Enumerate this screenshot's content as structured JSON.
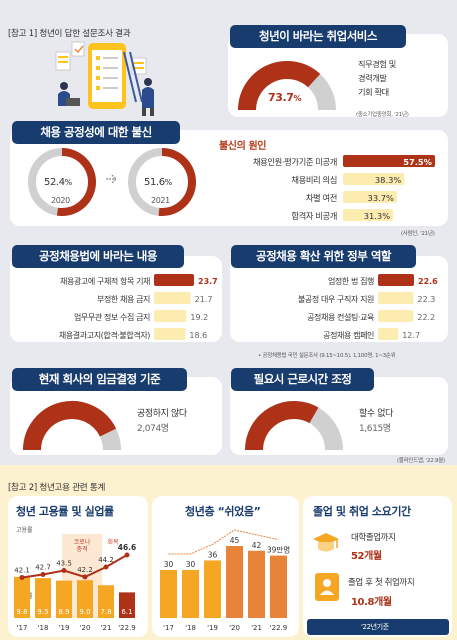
{
  "header1": "[참고 1] 청년이 답한 설문조사 결과",
  "header2": "[참고 2] 청년고용 관련 통계",
  "colors": {
    "navy": "#183c6e",
    "red": "#ad3218",
    "gray": "#d0d0d0",
    "yellow": "#fdecaf",
    "orange": "#f5a623",
    "lightbg": "#e8e9ef",
    "cream": "#fdf2cf"
  },
  "icons": [
    "illustration-people-survey",
    "graduation-cap-icon",
    "badge-id-icon",
    "arrow-right-icon"
  ],
  "p1": {
    "title": "청년이 바라는 취업서비스",
    "desc": [
      "직무경험 및",
      "경력개발",
      "기회 확대"
    ],
    "source": "(중소기업중앙회, '21년)",
    "chart_data": {
      "type": "pie",
      "values": [
        73.7
      ],
      "value_label": "73.7",
      "unit": "%"
    }
  },
  "p2": {
    "title": "채용 공정성에 대한 불신",
    "chart_data": [
      {
        "type": "pie",
        "year": "2020",
        "values": [
          52.4
        ],
        "value_label": "52.4",
        "unit": "%"
      },
      {
        "type": "pie",
        "year": "2021",
        "values": [
          51.6
        ],
        "value_label": "51.6",
        "unit": "%"
      }
    ]
  },
  "p3": {
    "title": "불신의 원인",
    "source": "(사람인, '21년)",
    "chart_data": {
      "type": "bar",
      "categories": [
        "채용인원·평가기준 미공개",
        "채용비리 의심",
        "차별 여전",
        "합격자 비공개"
      ],
      "values": [
        57.5,
        38.3,
        33.7,
        31.3
      ],
      "labels": [
        "57.5%",
        "38.3%",
        "33.7%",
        "31.3%"
      ],
      "xlim": [
        0,
        57.5
      ]
    }
  },
  "p4": {
    "title": "공정채용법에 바라는 내용",
    "chart_data": {
      "type": "bar",
      "categories": [
        "채용광고에 구체적 항목 기재",
        "부정한 채용 금지",
        "업무무관 정보 수집 금지",
        "채용결과고지(합격·불합격자)"
      ],
      "values": [
        23.7,
        21.7,
        19.2,
        18.6
      ],
      "labels": [
        "23.7",
        "21.7",
        "19.2",
        "18.6"
      ],
      "xlim": [
        0,
        23.7
      ]
    }
  },
  "p5": {
    "title": "공정채용 확산 위한 정부 역할",
    "chart_data": {
      "type": "bar",
      "categories": [
        "엄정한 법 집행",
        "불공정 대우 구직자 지원",
        "공정채용 컨설팅·교육",
        "공정채용 캠페인"
      ],
      "values": [
        22.6,
        22.3,
        22.2,
        12.7
      ],
      "labels": [
        "22.6",
        "22.3",
        "22.2",
        "12.7"
      ],
      "xlim": [
        0,
        22.6
      ]
    }
  },
  "note1": "• 공정채용법 국민 설문조사 (9.15~10.5), 1,100명, 1~3순위",
  "p6": {
    "title": "현재 회사의 임금결정 기준",
    "desc": "공정하지 않다",
    "count": "2,074명",
    "chart_data": {
      "type": "pie",
      "values": [
        85.6
      ],
      "value_label": "85.6",
      "unit": "%"
    }
  },
  "p7": {
    "title": "필요시 근로시간 조정",
    "desc": "할수 없다",
    "count": "1,615명",
    "source": "(블라인드앱, '22.9월)",
    "chart_data": {
      "type": "pie",
      "values": [
        66.6
      ],
      "value_label": "66.6",
      "unit": "%"
    }
  },
  "p8": {
    "title": "청년 고용률 및 실업률",
    "legend": [
      "고용률",
      "실업률"
    ],
    "covid_label": [
      "코로나",
      "충격"
    ],
    "recovery_label": "회복",
    "chart_data": {
      "type": "bar",
      "categories": [
        "'17",
        "'18",
        "'19",
        "'20",
        "'21",
        "'22.9"
      ],
      "series": [
        {
          "name": "고용률",
          "type": "line",
          "values": [
            42.1,
            42.7,
            43.5,
            42.2,
            44.2,
            46.6
          ]
        },
        {
          "name": "실업률",
          "type": "bar",
          "values": [
            9.8,
            9.5,
            8.9,
            9.0,
            7.8,
            6.1
          ]
        }
      ]
    }
  },
  "p9": {
    "title": "청년층 “쉬었음”",
    "unit_label": "39만명",
    "chart_data": {
      "type": "bar",
      "categories": [
        "'17",
        "'18",
        "'19",
        "'20",
        "'21",
        "'22.9"
      ],
      "values": [
        30,
        30,
        36,
        45,
        42,
        39
      ],
      "labels": [
        "30",
        "30",
        "36",
        "45",
        "42",
        "39만명"
      ]
    }
  },
  "p10": {
    "title": "졸업 및 취업 소요기간",
    "item1_label": "대학졸업까지",
    "item1_value": "52개월",
    "item2_label": "졸업 후 첫 취업까지",
    "item2_value": "10.8개월",
    "footer": "'22년기준"
  }
}
